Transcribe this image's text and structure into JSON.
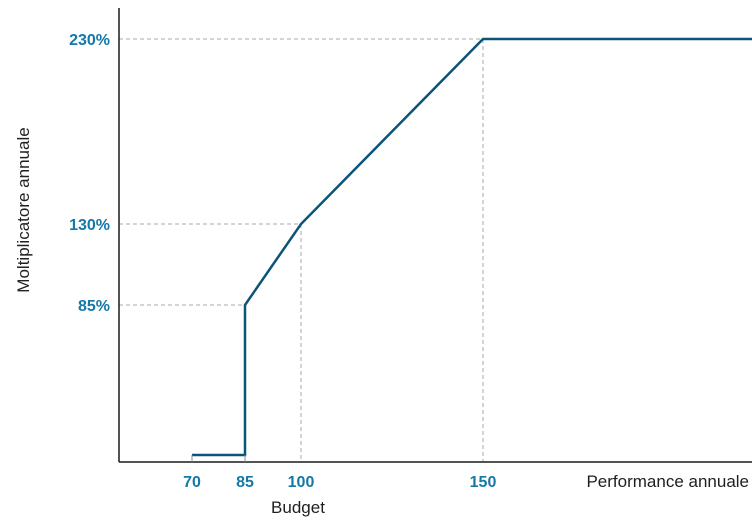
{
  "colors": {
    "series": "#0b5478",
    "tick_labels": "#1478a8",
    "axis": "#1a1a1a",
    "guides": "#a8a8a8"
  },
  "chart_data": {
    "type": "line",
    "title": "",
    "xlabel_secondary": "Performance annuale",
    "xlabel": "Budget",
    "ylabel": "Moltiplicatore annuale",
    "x_ticks": [
      {
        "value": 70,
        "label": "70"
      },
      {
        "value": 85,
        "label": "85"
      },
      {
        "value": 100,
        "label": "100"
      },
      {
        "value": 150,
        "label": "150"
      }
    ],
    "y_ticks": [
      {
        "value": 85,
        "label": "85%"
      },
      {
        "value": 130,
        "label": "130%"
      },
      {
        "value": 230,
        "label": "230%"
      }
    ],
    "xlim": [
      50,
      200
    ],
    "ylim": [
      0,
      240
    ],
    "series": [
      {
        "points": [
          [
            70,
            0
          ],
          [
            85,
            0
          ],
          [
            85,
            85
          ],
          [
            100,
            130
          ],
          [
            150,
            230
          ],
          [
            200,
            230
          ]
        ]
      }
    ],
    "guides": [
      {
        "x": 85,
        "y": 85
      },
      {
        "x": 100,
        "y": 130
      },
      {
        "x": 150,
        "y": 230
      }
    ],
    "grid": false
  }
}
